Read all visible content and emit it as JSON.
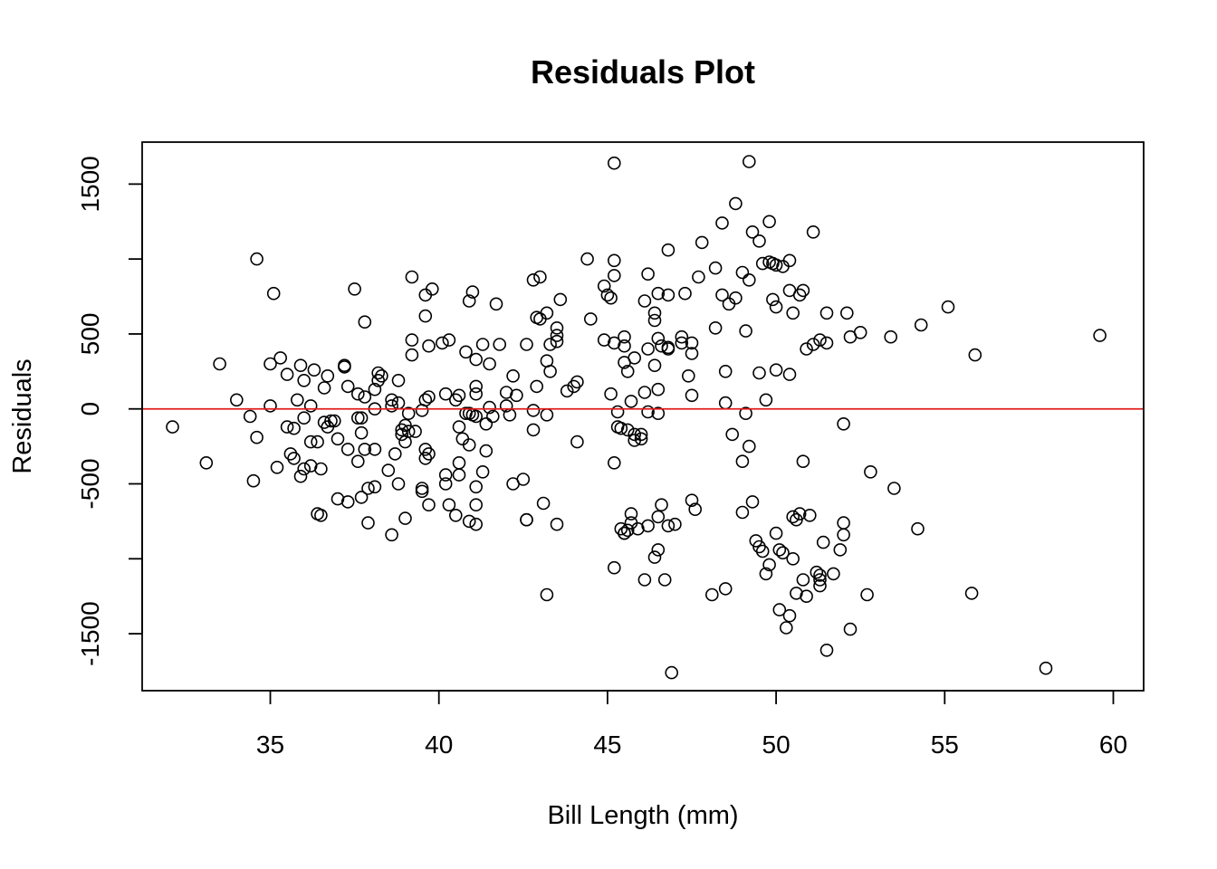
{
  "chart_data": {
    "type": "scatter",
    "title": "Residuals Plot",
    "xlabel": "Bill Length (mm)",
    "ylabel": "Residuals",
    "xlim": [
      31.2,
      60.9
    ],
    "ylim": [
      -1880,
      1780
    ],
    "xticks": [
      35,
      40,
      45,
      50,
      55,
      60
    ],
    "xtick_labels": [
      "35",
      "40",
      "45",
      "50",
      "55",
      "60"
    ],
    "yticks": [
      -1500,
      -1000,
      -500,
      0,
      500,
      1000,
      1500
    ],
    "ytick_labels": [
      "-1500",
      "",
      "-500",
      "0",
      "500",
      "",
      "1500"
    ],
    "grid": false,
    "legend": "none",
    "colors": {
      "points": "#000000",
      "reference_line": "#e31a1c",
      "frame": "#000000"
    },
    "reference_line": {
      "y": 0
    },
    "points": [
      [
        32.1,
        -120
      ],
      [
        33.1,
        -360
      ],
      [
        33.5,
        300
      ],
      [
        34.0,
        60
      ],
      [
        34.4,
        -50
      ],
      [
        34.5,
        -480
      ],
      [
        34.6,
        -190
      ],
      [
        34.6,
        1000
      ],
      [
        35.0,
        300
      ],
      [
        35.0,
        20
      ],
      [
        35.1,
        770
      ],
      [
        35.2,
        -390
      ],
      [
        35.3,
        340
      ],
      [
        35.5,
        -120
      ],
      [
        35.5,
        230
      ],
      [
        35.6,
        -300
      ],
      [
        35.7,
        -330
      ],
      [
        35.7,
        -130
      ],
      [
        35.8,
        60
      ],
      [
        35.9,
        -450
      ],
      [
        35.9,
        290
      ],
      [
        36.0,
        -60
      ],
      [
        36.0,
        190
      ],
      [
        36.0,
        -400
      ],
      [
        36.2,
        -220
      ],
      [
        36.2,
        20
      ],
      [
        36.2,
        -380
      ],
      [
        36.3,
        260
      ],
      [
        36.4,
        -220
      ],
      [
        36.4,
        -700
      ],
      [
        36.5,
        -710
      ],
      [
        36.5,
        -400
      ],
      [
        36.6,
        140
      ],
      [
        36.6,
        -90
      ],
      [
        36.7,
        -120
      ],
      [
        36.7,
        220
      ],
      [
        36.8,
        -80
      ],
      [
        36.9,
        -80
      ],
      [
        37.0,
        -200
      ],
      [
        37.0,
        -600
      ],
      [
        37.2,
        290
      ],
      [
        37.2,
        280
      ],
      [
        37.3,
        -270
      ],
      [
        37.3,
        150
      ],
      [
        37.3,
        -620
      ],
      [
        37.5,
        800
      ],
      [
        37.6,
        -60
      ],
      [
        37.6,
        100
      ],
      [
        37.6,
        -350
      ],
      [
        37.7,
        -160
      ],
      [
        37.7,
        -590
      ],
      [
        37.7,
        -60
      ],
      [
        37.8,
        -270
      ],
      [
        37.8,
        80
      ],
      [
        37.8,
        580
      ],
      [
        37.9,
        -760
      ],
      [
        37.9,
        -530
      ],
      [
        38.1,
        -520
      ],
      [
        38.1,
        -270
      ],
      [
        38.1,
        0
      ],
      [
        38.1,
        130
      ],
      [
        38.2,
        190
      ],
      [
        38.2,
        240
      ],
      [
        38.3,
        220
      ],
      [
        38.5,
        -410
      ],
      [
        38.6,
        -840
      ],
      [
        38.6,
        20
      ],
      [
        38.6,
        60
      ],
      [
        38.7,
        -300
      ],
      [
        38.8,
        -500
      ],
      [
        38.8,
        40
      ],
      [
        38.8,
        190
      ],
      [
        38.9,
        -170
      ],
      [
        38.9,
        -140
      ],
      [
        39.0,
        -110
      ],
      [
        39.0,
        -220
      ],
      [
        39.0,
        -730
      ],
      [
        39.1,
        -150
      ],
      [
        39.1,
        -30
      ],
      [
        39.2,
        460
      ],
      [
        39.2,
        360
      ],
      [
        39.2,
        880
      ],
      [
        39.3,
        -150
      ],
      [
        39.5,
        -10
      ],
      [
        39.5,
        -550
      ],
      [
        39.5,
        -530
      ],
      [
        39.6,
        -330
      ],
      [
        39.6,
        -270
      ],
      [
        39.6,
        60
      ],
      [
        39.6,
        620
      ],
      [
        39.6,
        760
      ],
      [
        39.7,
        80
      ],
      [
        39.7,
        -640
      ],
      [
        39.7,
        420
      ],
      [
        39.7,
        -300
      ],
      [
        39.8,
        800
      ],
      [
        40.1,
        440
      ],
      [
        40.2,
        -500
      ],
      [
        40.2,
        100
      ],
      [
        40.2,
        -440
      ],
      [
        40.3,
        460
      ],
      [
        40.3,
        -640
      ],
      [
        40.5,
        -710
      ],
      [
        40.5,
        60
      ],
      [
        40.6,
        -120
      ],
      [
        40.6,
        -440
      ],
      [
        40.6,
        -360
      ],
      [
        40.6,
        90
      ],
      [
        40.7,
        -200
      ],
      [
        40.8,
        -30
      ],
      [
        40.8,
        380
      ],
      [
        40.9,
        -750
      ],
      [
        40.9,
        -30
      ],
      [
        40.9,
        -240
      ],
      [
        40.9,
        720
      ],
      [
        41.0,
        -40
      ],
      [
        41.0,
        780
      ],
      [
        41.1,
        -770
      ],
      [
        41.1,
        -640
      ],
      [
        41.1,
        -520
      ],
      [
        41.1,
        100
      ],
      [
        41.1,
        330
      ],
      [
        41.1,
        -50
      ],
      [
        41.1,
        150
      ],
      [
        41.3,
        -420
      ],
      [
        41.3,
        430
      ],
      [
        41.4,
        -100
      ],
      [
        41.4,
        -280
      ],
      [
        41.5,
        300
      ],
      [
        41.5,
        10
      ],
      [
        41.6,
        -50
      ],
      [
        41.7,
        700
      ],
      [
        41.8,
        430
      ],
      [
        42.0,
        20
      ],
      [
        42.0,
        110
      ],
      [
        42.1,
        -40
      ],
      [
        42.2,
        220
      ],
      [
        42.2,
        -500
      ],
      [
        42.3,
        90
      ],
      [
        42.5,
        -470
      ],
      [
        42.6,
        -740
      ],
      [
        42.6,
        -740
      ],
      [
        42.6,
        430
      ],
      [
        42.8,
        -10
      ],
      [
        42.8,
        -140
      ],
      [
        42.8,
        860
      ],
      [
        42.9,
        150
      ],
      [
        42.9,
        610
      ],
      [
        43.0,
        600
      ],
      [
        43.0,
        880
      ],
      [
        43.1,
        -630
      ],
      [
        43.2,
        -1240
      ],
      [
        43.2,
        320
      ],
      [
        43.2,
        -40
      ],
      [
        43.2,
        640
      ],
      [
        43.3,
        250
      ],
      [
        43.3,
        430
      ],
      [
        43.5,
        450
      ],
      [
        43.5,
        -770
      ],
      [
        43.5,
        490
      ],
      [
        43.5,
        540
      ],
      [
        43.6,
        730
      ],
      [
        43.8,
        120
      ],
      [
        44.0,
        150
      ],
      [
        44.1,
        -220
      ],
      [
        44.1,
        180
      ],
      [
        44.4,
        1000
      ],
      [
        44.5,
        600
      ],
      [
        44.9,
        460
      ],
      [
        44.9,
        820
      ],
      [
        45.0,
        760
      ],
      [
        45.1,
        740
      ],
      [
        45.1,
        100
      ],
      [
        45.2,
        -1060
      ],
      [
        45.2,
        -360
      ],
      [
        45.2,
        440
      ],
      [
        45.2,
        890
      ],
      [
        45.2,
        990
      ],
      [
        45.2,
        1640
      ],
      [
        45.3,
        -120
      ],
      [
        45.3,
        -20
      ],
      [
        45.4,
        -800
      ],
      [
        45.4,
        -130
      ],
      [
        45.5,
        480
      ],
      [
        45.5,
        -830
      ],
      [
        45.5,
        -830
      ],
      [
        45.5,
        310
      ],
      [
        45.5,
        420
      ],
      [
        45.6,
        -140
      ],
      [
        45.6,
        -810
      ],
      [
        45.6,
        250
      ],
      [
        45.7,
        -760
      ],
      [
        45.7,
        -700
      ],
      [
        45.7,
        50
      ],
      [
        45.8,
        -170
      ],
      [
        45.8,
        340
      ],
      [
        45.8,
        -210
      ],
      [
        45.9,
        -800
      ],
      [
        46.0,
        -200
      ],
      [
        46.0,
        -170
      ],
      [
        46.1,
        -1140
      ],
      [
        46.1,
        110
      ],
      [
        46.1,
        720
      ],
      [
        46.2,
        -780
      ],
      [
        46.2,
        -20
      ],
      [
        46.2,
        400
      ],
      [
        46.2,
        900
      ],
      [
        46.4,
        -990
      ],
      [
        46.4,
        290
      ],
      [
        46.4,
        590
      ],
      [
        46.4,
        640
      ],
      [
        46.5,
        -940
      ],
      [
        46.5,
        -720
      ],
      [
        46.5,
        -30
      ],
      [
        46.5,
        130
      ],
      [
        46.5,
        470
      ],
      [
        46.5,
        770
      ],
      [
        46.6,
        -640
      ],
      [
        46.6,
        420
      ],
      [
        46.7,
        -1140
      ],
      [
        46.8,
        -780
      ],
      [
        46.8,
        410
      ],
      [
        46.8,
        760
      ],
      [
        46.8,
        1060
      ],
      [
        46.8,
        400
      ],
      [
        46.9,
        -1760
      ],
      [
        47.0,
        -770
      ],
      [
        47.2,
        480
      ],
      [
        47.2,
        440
      ],
      [
        47.3,
        770
      ],
      [
        47.4,
        220
      ],
      [
        47.5,
        -610
      ],
      [
        47.5,
        90
      ],
      [
        47.5,
        370
      ],
      [
        47.5,
        440
      ],
      [
        47.6,
        -670
      ],
      [
        47.7,
        880
      ],
      [
        47.8,
        1110
      ],
      [
        48.1,
        -1240
      ],
      [
        48.2,
        540
      ],
      [
        48.2,
        940
      ],
      [
        48.4,
        1240
      ],
      [
        48.4,
        760
      ],
      [
        48.5,
        -1200
      ],
      [
        48.5,
        250
      ],
      [
        48.5,
        40
      ],
      [
        48.6,
        700
      ],
      [
        48.7,
        -170
      ],
      [
        48.8,
        740
      ],
      [
        48.8,
        1370
      ],
      [
        49.0,
        -350
      ],
      [
        49.0,
        -690
      ],
      [
        49.0,
        910
      ],
      [
        49.1,
        -30
      ],
      [
        49.1,
        520
      ],
      [
        49.2,
        -250
      ],
      [
        49.2,
        860
      ],
      [
        49.2,
        1650
      ],
      [
        49.3,
        -620
      ],
      [
        49.3,
        1180
      ],
      [
        49.4,
        -880
      ],
      [
        49.5,
        -920
      ],
      [
        49.5,
        1120
      ],
      [
        49.6,
        -950
      ],
      [
        49.6,
        970
      ],
      [
        49.7,
        -1100
      ],
      [
        49.8,
        -1040
      ],
      [
        49.8,
        980
      ],
      [
        49.8,
        1250
      ],
      [
        50.0,
        -830
      ],
      [
        50.0,
        960
      ],
      [
        50.1,
        -1340
      ],
      [
        50.1,
        -940
      ],
      [
        50.2,
        -960
      ],
      [
        50.3,
        -1460
      ],
      [
        50.4,
        -1380
      ],
      [
        50.5,
        -1000
      ],
      [
        50.5,
        -720
      ],
      [
        50.6,
        -740
      ],
      [
        50.6,
        -1230
      ],
      [
        50.7,
        -700
      ],
      [
        50.8,
        -1140
      ],
      [
        50.9,
        -1250
      ],
      [
        51.0,
        -710
      ],
      [
        51.1,
        430
      ],
      [
        51.1,
        1180
      ],
      [
        51.2,
        -1090
      ],
      [
        51.3,
        -1180
      ],
      [
        51.3,
        -1110
      ],
      [
        51.3,
        -1140
      ],
      [
        51.4,
        -890
      ],
      [
        51.5,
        640
      ],
      [
        51.5,
        -1610
      ],
      [
        51.7,
        -1100
      ],
      [
        51.9,
        -940
      ],
      [
        52.0,
        -840
      ],
      [
        52.0,
        -760
      ],
      [
        52.0,
        -100
      ],
      [
        52.1,
        640
      ],
      [
        52.2,
        480
      ],
      [
        52.2,
        -1470
      ],
      [
        52.5,
        510
      ],
      [
        52.7,
        -1240
      ],
      [
        52.8,
        -420
      ],
      [
        53.4,
        480
      ],
      [
        53.5,
        -530
      ],
      [
        54.2,
        -800
      ],
      [
        54.3,
        560
      ],
      [
        55.1,
        680
      ],
      [
        55.8,
        -1230
      ],
      [
        55.9,
        360
      ],
      [
        58.0,
        -1730
      ],
      [
        59.6,
        490
      ],
      [
        49.7,
        60
      ],
      [
        50.8,
        -350
      ],
      [
        50.4,
        230
      ],
      [
        50.0,
        260
      ],
      [
        51.5,
        440
      ],
      [
        50.5,
        640
      ],
      [
        50.7,
        760
      ],
      [
        50.8,
        790
      ],
      [
        50.4,
        790
      ],
      [
        50.0,
        680
      ],
      [
        49.9,
        730
      ],
      [
        49.5,
        240
      ],
      [
        49.9,
        970
      ],
      [
        50.2,
        950
      ],
      [
        50.4,
        990
      ],
      [
        50.9,
        400
      ],
      [
        51.3,
        460
      ]
    ]
  }
}
